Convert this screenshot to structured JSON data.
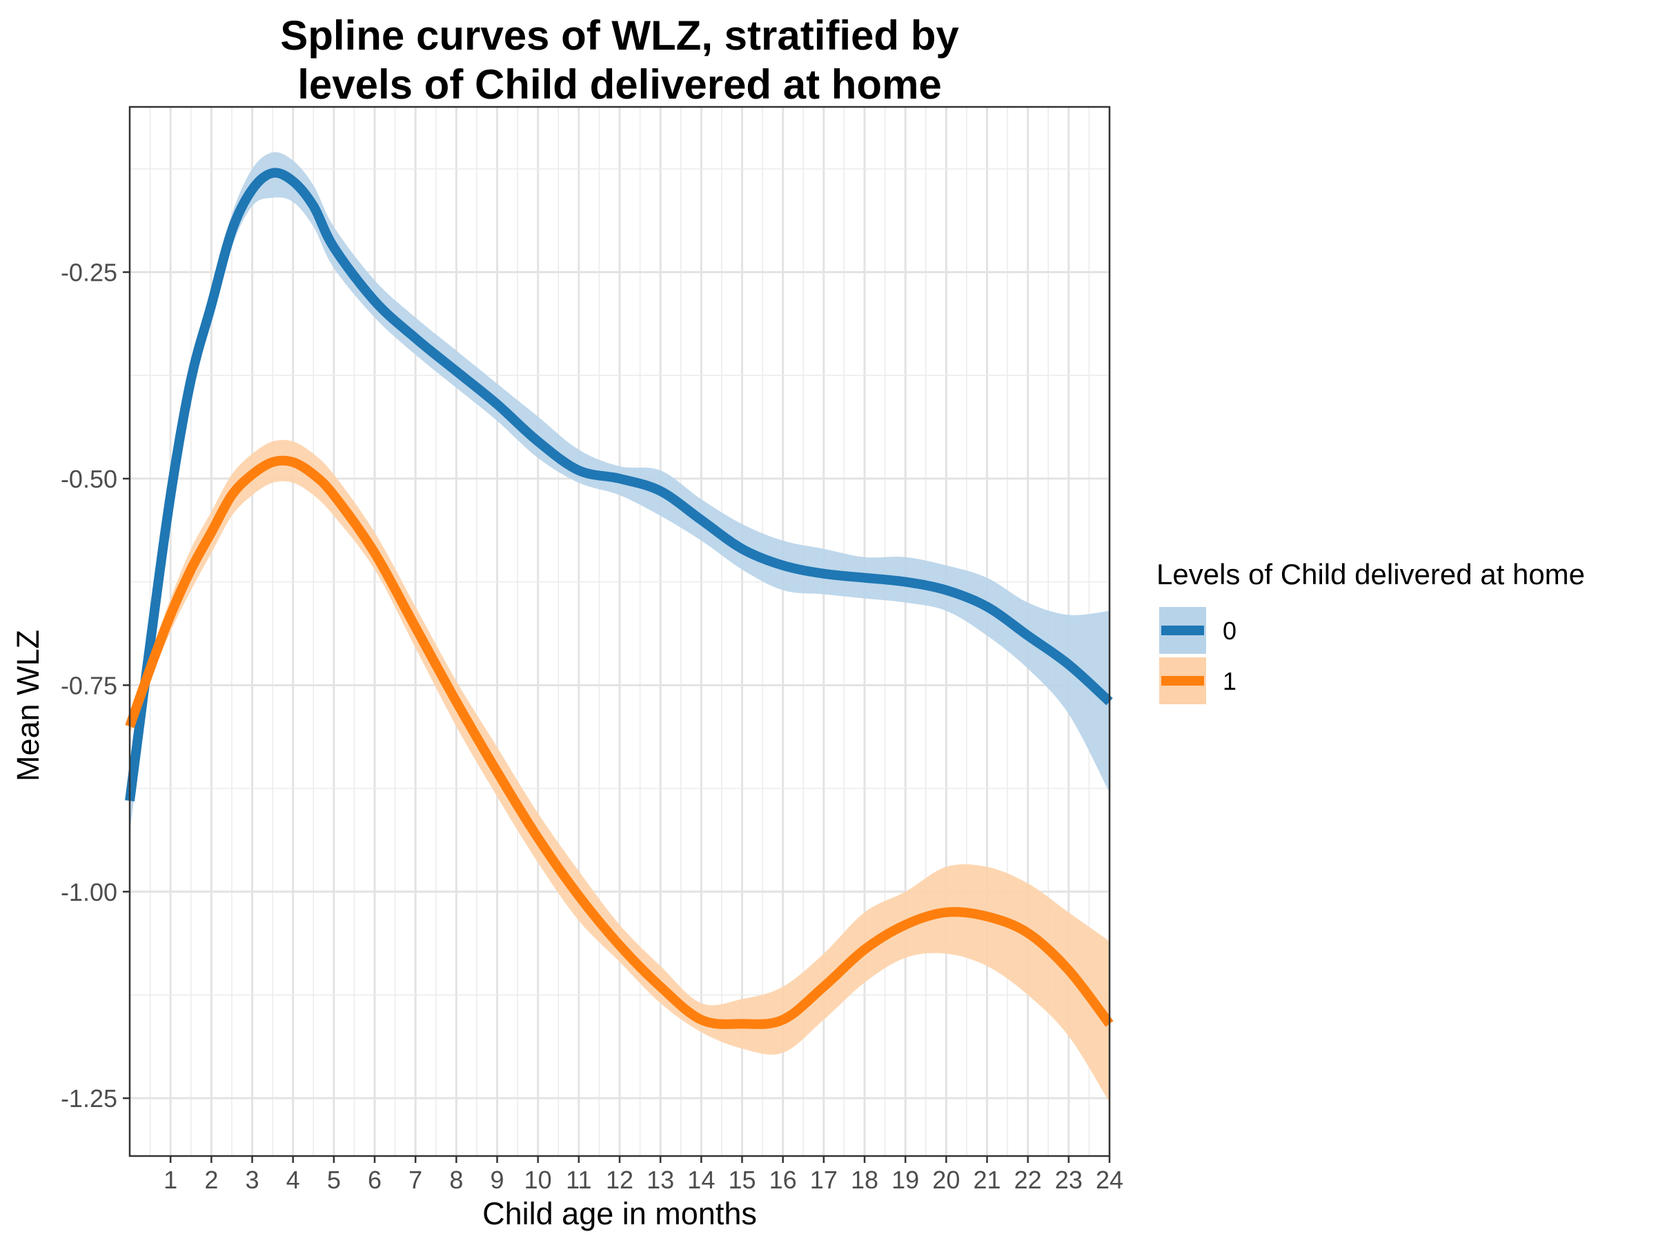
{
  "chart_data": {
    "type": "line",
    "title_line1": "Spline curves of WLZ, stratified by",
    "title_line2": "levels of Child delivered at home",
    "xlabel": "Child age in months",
    "ylabel": "Mean WLZ",
    "xlim": [
      0,
      24
    ],
    "ylim": [
      -1.32,
      -0.05
    ],
    "x_ticks": [
      "1",
      "2",
      "3",
      "4",
      "5",
      "6",
      "7",
      "8",
      "9",
      "10",
      "11",
      "12",
      "13",
      "14",
      "15",
      "16",
      "17",
      "18",
      "19",
      "20",
      "21",
      "22",
      "23",
      "24"
    ],
    "y_ticks": [
      "-0.25",
      "-0.50",
      "-0.75",
      "-1.00",
      "-1.25"
    ],
    "y_tick_values": [
      -0.25,
      -0.5,
      -0.75,
      -1.0,
      -1.25
    ],
    "grid": true,
    "legend": {
      "title": "Levels of Child delivered at home",
      "position": "right",
      "entries": [
        "0",
        "1"
      ]
    },
    "series": [
      {
        "name": "0",
        "color": "#1f77b4",
        "fill": "#b7d3e9",
        "x": [
          0,
          0.5,
          1,
          1.5,
          2,
          2.5,
          3,
          3.5,
          4,
          4.5,
          5,
          6,
          7,
          8,
          9,
          10,
          11,
          12,
          13,
          14,
          15,
          16,
          17,
          18,
          19,
          20,
          21,
          22,
          23,
          24
        ],
        "y": [
          -0.89,
          -0.7,
          -0.52,
          -0.38,
          -0.29,
          -0.2,
          -0.15,
          -0.13,
          -0.14,
          -0.17,
          -0.22,
          -0.285,
          -0.33,
          -0.37,
          -0.41,
          -0.455,
          -0.49,
          -0.5,
          -0.515,
          -0.55,
          -0.585,
          -0.605,
          -0.615,
          -0.62,
          -0.625,
          -0.635,
          -0.655,
          -0.69,
          -0.725,
          -0.77
        ],
        "lower": [
          -0.93,
          -0.73,
          -0.54,
          -0.4,
          -0.31,
          -0.22,
          -0.17,
          -0.16,
          -0.165,
          -0.195,
          -0.245,
          -0.305,
          -0.35,
          -0.39,
          -0.43,
          -0.475,
          -0.505,
          -0.52,
          -0.545,
          -0.575,
          -0.61,
          -0.635,
          -0.64,
          -0.645,
          -0.65,
          -0.66,
          -0.69,
          -0.73,
          -0.785,
          -0.88
        ],
        "upper": [
          -0.85,
          -0.67,
          -0.5,
          -0.36,
          -0.27,
          -0.18,
          -0.125,
          -0.105,
          -0.115,
          -0.145,
          -0.195,
          -0.26,
          -0.305,
          -0.345,
          -0.385,
          -0.425,
          -0.465,
          -0.485,
          -0.49,
          -0.525,
          -0.555,
          -0.575,
          -0.585,
          -0.595,
          -0.595,
          -0.605,
          -0.62,
          -0.65,
          -0.665,
          -0.66
        ]
      },
      {
        "name": "1",
        "color": "#ff7f0e",
        "fill": "#fdd1a9",
        "x": [
          0,
          0.5,
          1,
          1.5,
          2,
          2.5,
          3,
          3.5,
          4,
          4.5,
          5,
          6,
          7,
          8,
          9,
          10,
          11,
          12,
          13,
          14,
          15,
          16,
          17,
          18,
          19,
          20,
          21,
          22,
          23,
          24
        ],
        "y": [
          -0.8,
          -0.73,
          -0.665,
          -0.61,
          -0.565,
          -0.52,
          -0.495,
          -0.48,
          -0.48,
          -0.495,
          -0.52,
          -0.59,
          -0.68,
          -0.77,
          -0.855,
          -0.935,
          -1.005,
          -1.065,
          -1.115,
          -1.155,
          -1.16,
          -1.155,
          -1.115,
          -1.07,
          -1.04,
          -1.025,
          -1.03,
          -1.05,
          -1.095,
          -1.16
        ],
        "lower": [
          -0.81,
          -0.745,
          -0.685,
          -0.635,
          -0.59,
          -0.545,
          -0.52,
          -0.505,
          -0.505,
          -0.52,
          -0.545,
          -0.61,
          -0.705,
          -0.8,
          -0.885,
          -0.965,
          -1.035,
          -1.085,
          -1.135,
          -1.17,
          -1.19,
          -1.195,
          -1.155,
          -1.11,
          -1.08,
          -1.075,
          -1.09,
          -1.125,
          -1.175,
          -1.255
        ],
        "upper": [
          -0.79,
          -0.715,
          -0.645,
          -0.585,
          -0.54,
          -0.495,
          -0.47,
          -0.455,
          -0.455,
          -0.47,
          -0.495,
          -0.565,
          -0.655,
          -0.745,
          -0.825,
          -0.905,
          -0.975,
          -1.04,
          -1.09,
          -1.135,
          -1.13,
          -1.115,
          -1.075,
          -1.025,
          -1.0,
          -0.97,
          -0.97,
          -0.99,
          -1.025,
          -1.06
        ]
      }
    ]
  }
}
